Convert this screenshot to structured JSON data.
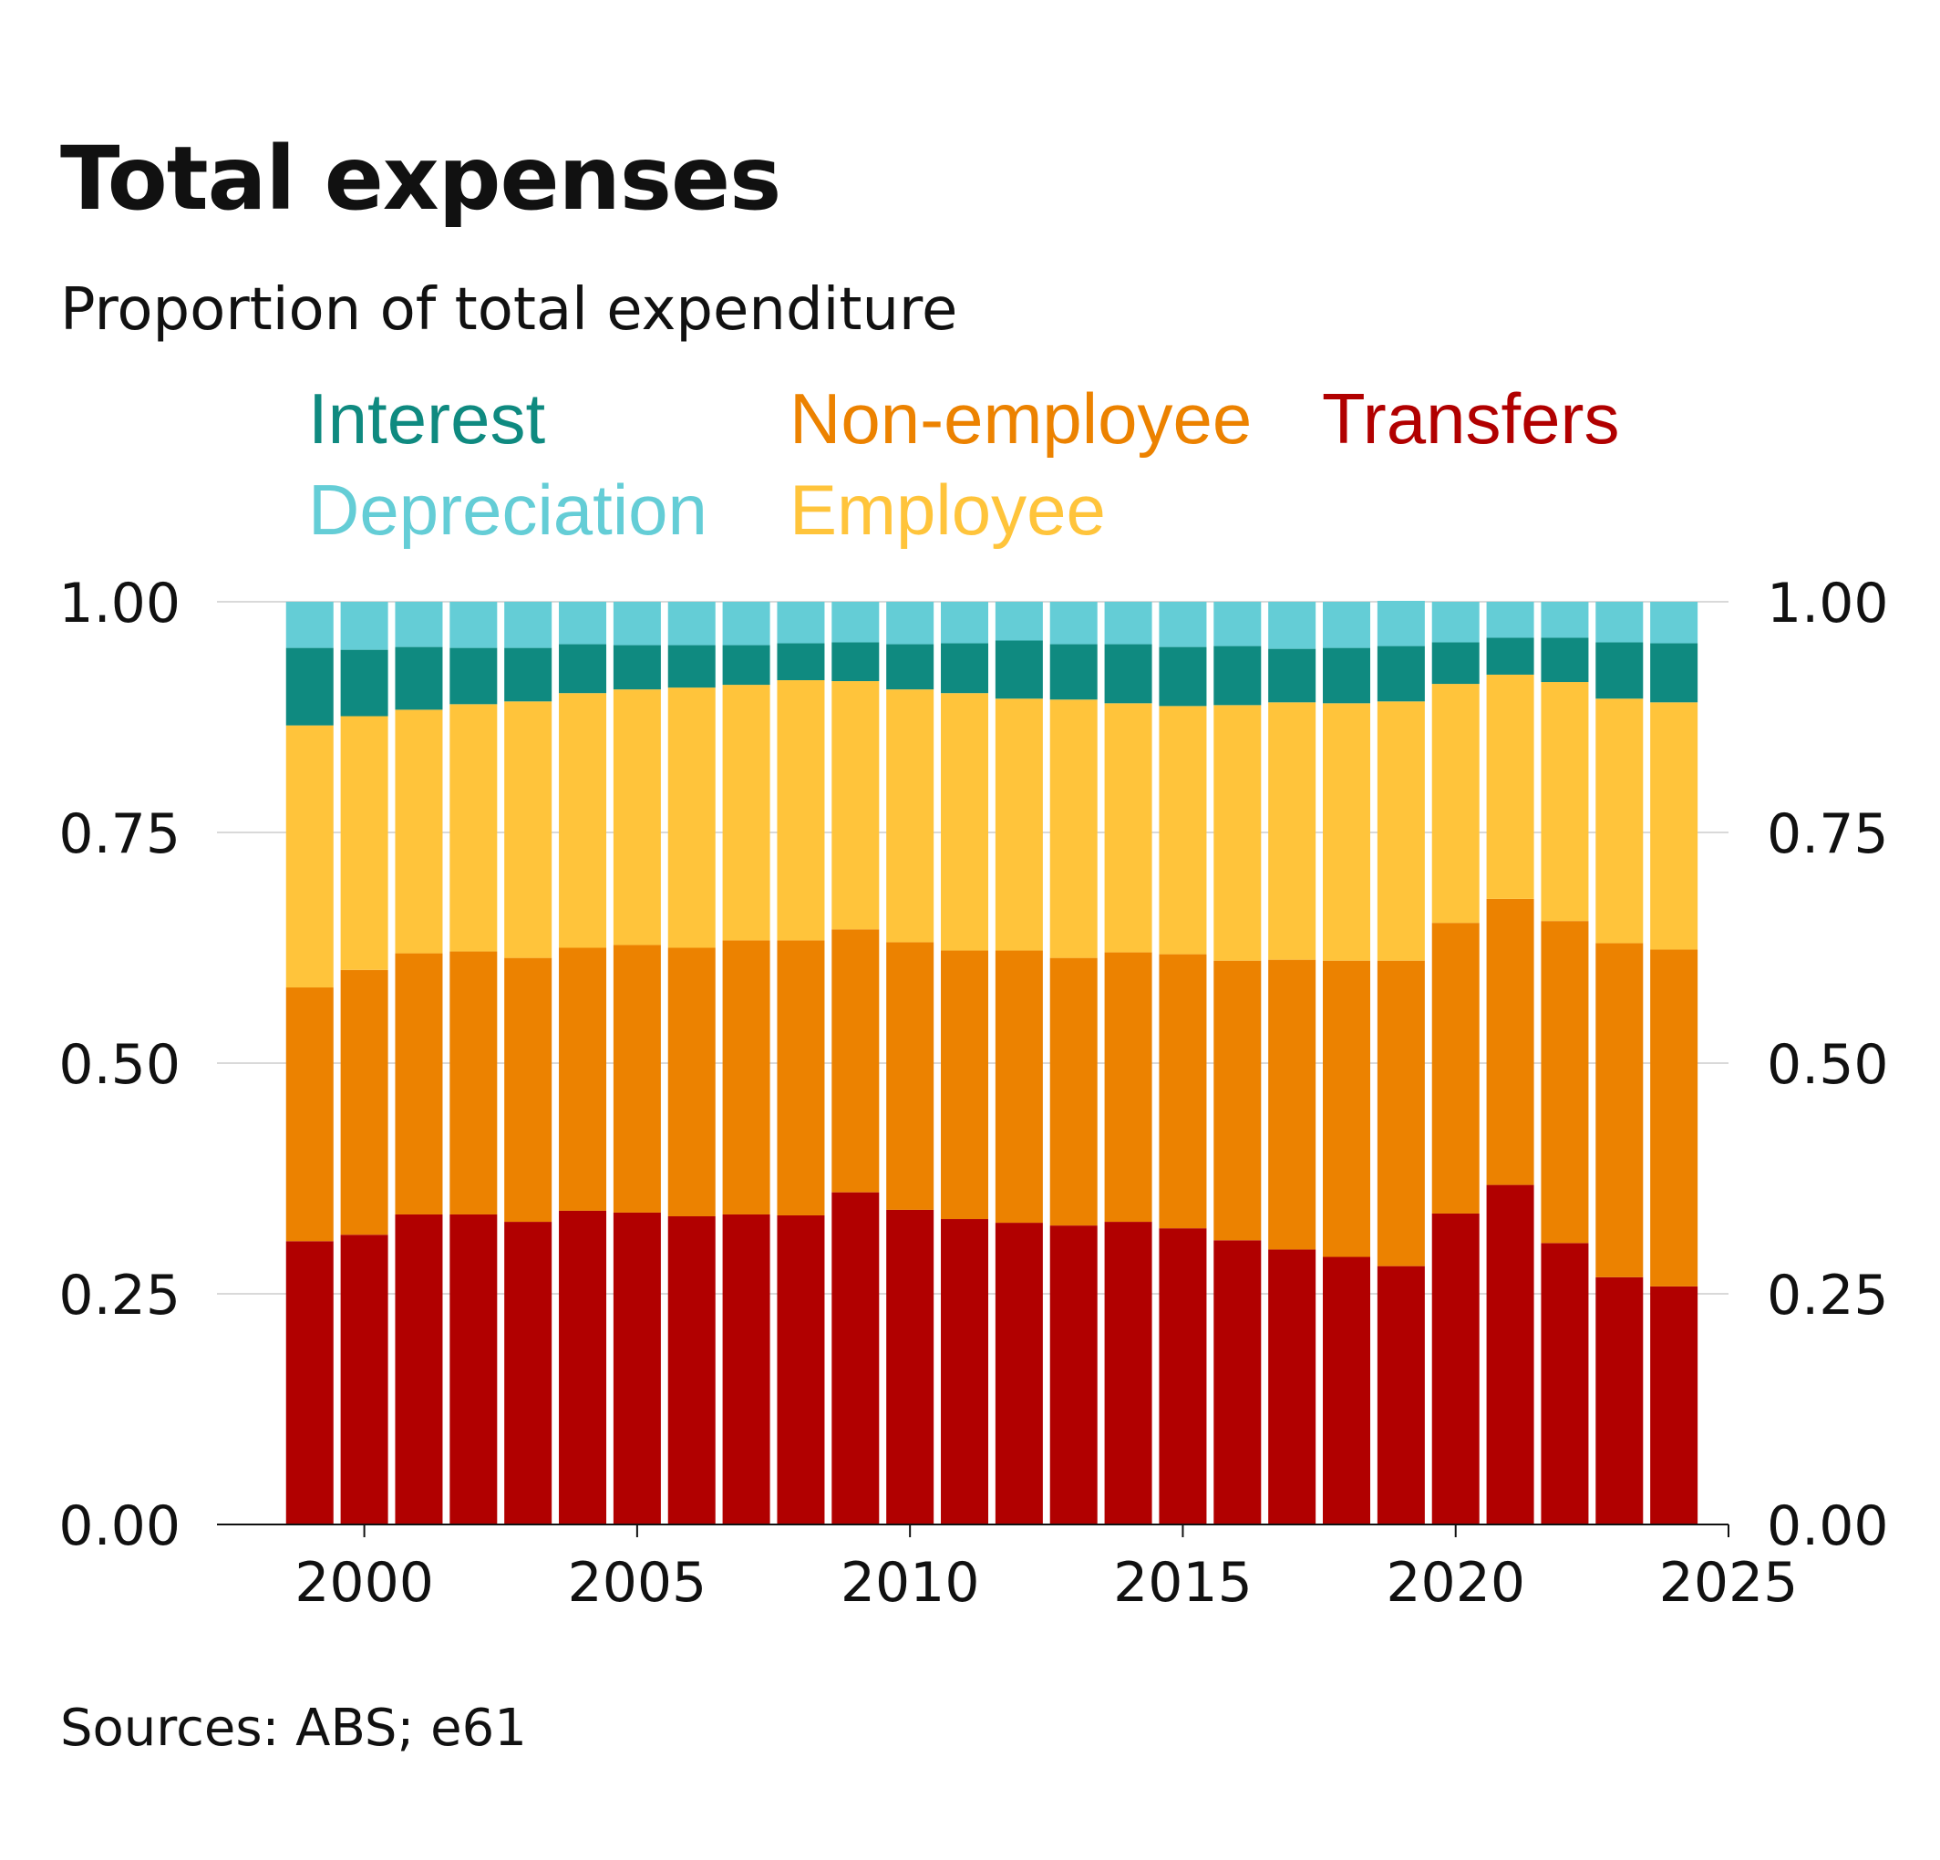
{
  "title": "Total expenses",
  "subtitle": "Proportion of total expenditure",
  "source": "Sources: ABS; e61",
  "legend": [
    {
      "name": "Interest",
      "color": "#0f8a80"
    },
    {
      "name": "Non-employee",
      "color": "#ec8200"
    },
    {
      "name": "Transfers",
      "color": "#b10000"
    },
    {
      "name": "Depreciation",
      "color": "#64cdd6"
    },
    {
      "name": "Employee",
      "color": "#ffc43b"
    }
  ],
  "chart_data": {
    "type": "bar",
    "stacked": true,
    "title": "Total expenses",
    "subtitle": "Proportion of total expenditure",
    "categories": [
      1999,
      2000,
      2001,
      2002,
      2003,
      2004,
      2005,
      2006,
      2007,
      2008,
      2009,
      2010,
      2011,
      2012,
      2013,
      2014,
      2015,
      2016,
      2017,
      2018,
      2019,
      2020,
      2021,
      2022,
      2023,
      2024
    ],
    "x_ticks": [
      2000,
      2005,
      2010,
      2015,
      2020,
      2025
    ],
    "y_ticks": [
      "0.00",
      "0.25",
      "0.50",
      "0.75",
      "1.00"
    ],
    "ylim": [
      0,
      1
    ],
    "grid": "horizontal",
    "y_axis_both_sides": true,
    "series": [
      {
        "name": "Transfers",
        "color": "#b10000",
        "values": [
          0.307,
          0.314,
          0.336,
          0.336,
          0.328,
          0.34,
          0.338,
          0.334,
          0.336,
          0.335,
          0.36,
          0.341,
          0.331,
          0.327,
          0.324,
          0.328,
          0.321,
          0.308,
          0.298,
          0.29,
          0.28,
          0.337,
          0.368,
          0.305,
          0.268,
          0.258
        ]
      },
      {
        "name": "Non-employee",
        "color": "#ec8200",
        "values": [
          0.275,
          0.287,
          0.283,
          0.285,
          0.286,
          0.285,
          0.29,
          0.291,
          0.297,
          0.298,
          0.285,
          0.29,
          0.291,
          0.295,
          0.29,
          0.292,
          0.297,
          0.303,
          0.314,
          0.321,
          0.331,
          0.315,
          0.31,
          0.349,
          0.362,
          0.365
        ]
      },
      {
        "name": "Employee",
        "color": "#ffc43b",
        "values": [
          0.284,
          0.275,
          0.264,
          0.268,
          0.278,
          0.276,
          0.277,
          0.282,
          0.277,
          0.282,
          0.269,
          0.274,
          0.279,
          0.273,
          0.28,
          0.27,
          0.269,
          0.277,
          0.279,
          0.279,
          0.281,
          0.259,
          0.243,
          0.259,
          0.265,
          0.268
        ]
      },
      {
        "name": "Interest",
        "color": "#0f8a80",
        "values": [
          0.084,
          0.072,
          0.068,
          0.061,
          0.058,
          0.053,
          0.048,
          0.046,
          0.043,
          0.04,
          0.042,
          0.049,
          0.054,
          0.063,
          0.06,
          0.064,
          0.064,
          0.064,
          0.058,
          0.06,
          0.06,
          0.045,
          0.04,
          0.048,
          0.061,
          0.064
        ]
      },
      {
        "name": "Depreciation",
        "color": "#64cdd6",
        "values": [
          0.05,
          0.052,
          0.049,
          0.05,
          0.05,
          0.046,
          0.047,
          0.047,
          0.047,
          0.045,
          0.044,
          0.046,
          0.045,
          0.042,
          0.046,
          0.046,
          0.049,
          0.048,
          0.051,
          0.05,
          0.049,
          0.044,
          0.039,
          0.039,
          0.044,
          0.045
        ]
      }
    ]
  }
}
